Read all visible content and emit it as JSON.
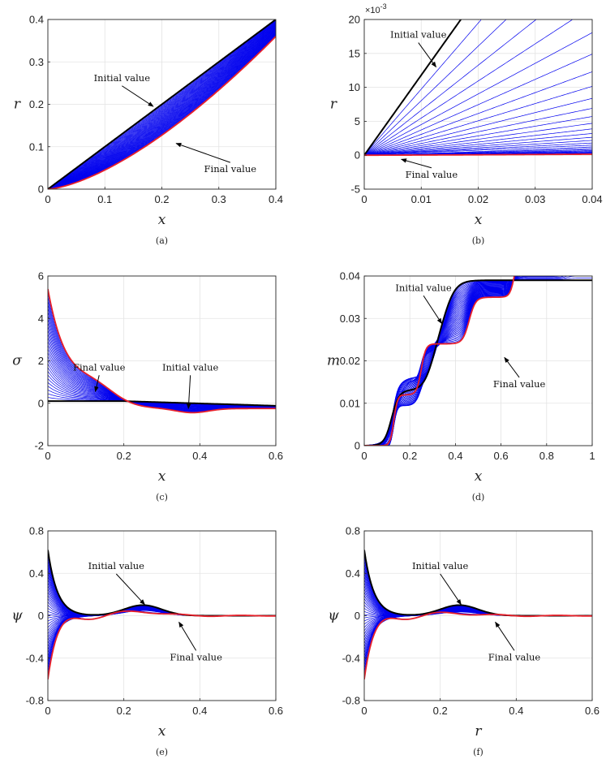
{
  "colors": {
    "family": "#0000ee",
    "initial": "#000000",
    "final": "#e8202a",
    "axis": "#262626",
    "grid": "#e3e3e3"
  },
  "chart_data": [
    {
      "id": "a",
      "type": "line",
      "caption": "(a)",
      "xlabel": "x",
      "ylabel": "r",
      "xlim": [
        0,
        0.4
      ],
      "ylim": [
        0,
        0.4
      ],
      "xticks": [
        0,
        0.1,
        0.2,
        0.3,
        0.4
      ],
      "xtick_labels": [
        "0",
        "0.1",
        "0.2",
        "0.3",
        "0.4"
      ],
      "yticks": [
        0,
        0.1,
        0.2,
        0.3,
        0.4
      ],
      "ytick_labels": [
        "0",
        "0.1",
        "0.2",
        "0.3",
        "0.4"
      ],
      "y_multiplier": "",
      "curve_model": "power",
      "init_params": [
        1.0,
        1.0
      ],
      "final_params": [
        1.45,
        1.5
      ],
      "family_count": 40,
      "annotations": [
        {
          "text": "Initial value",
          "label_xy": [
            0.13,
            0.255
          ],
          "tip_xy": [
            0.185,
            0.195
          ]
        },
        {
          "text": "Final value",
          "label_xy": [
            0.32,
            0.04
          ],
          "tip_xy": [
            0.225,
            0.108
          ]
        }
      ]
    },
    {
      "id": "b",
      "type": "line",
      "caption": "(b)",
      "xlabel": "x",
      "ylabel": "r",
      "xlim": [
        0,
        0.04
      ],
      "ylim": [
        -5,
        20
      ],
      "xticks": [
        0,
        0.01,
        0.02,
        0.03,
        0.04
      ],
      "xtick_labels": [
        "0",
        "0.01",
        "0.02",
        "0.03",
        "0.04"
      ],
      "yticks": [
        -5,
        0,
        5,
        10,
        15,
        20
      ],
      "ytick_labels": [
        "-5",
        "0",
        "5",
        "10",
        "15",
        "20"
      ],
      "y_multiplier": "×10-3",
      "curve_model": "fan",
      "init_params": [
        1000
      ],
      "final_params": [
        3.7
      ],
      "family_count": 30,
      "annotations": [
        {
          "text": "Initial value",
          "label_xy": [
            0.0095,
            17.3
          ],
          "tip_xy": [
            0.0126,
            13.0
          ]
        },
        {
          "text": "Final value",
          "label_xy": [
            0.0118,
            -3.3
          ],
          "tip_xy": [
            0.0065,
            -0.6
          ]
        }
      ]
    },
    {
      "id": "c",
      "type": "line",
      "caption": "(c)",
      "xlabel": "x",
      "ylabel": "σ",
      "xlim": [
        0,
        0.6
      ],
      "ylim": [
        -2,
        6
      ],
      "xticks": [
        0,
        0.2,
        0.4,
        0.6
      ],
      "xtick_labels": [
        "0",
        "0.2",
        "0.4",
        "0.6"
      ],
      "yticks": [
        -2,
        0,
        2,
        4,
        6
      ],
      "ytick_labels": [
        "-2",
        "0",
        "2",
        "4",
        "6"
      ],
      "y_multiplier": "",
      "curve_model": "decay",
      "init_params": [
        0.1,
        -0.25
      ],
      "final_params": [
        5.3,
        -0.25
      ],
      "family_count": 30,
      "annotations": [
        {
          "text": "Final value",
          "label_xy": [
            0.135,
            1.55
          ],
          "tip_xy": [
            0.125,
            0.55
          ]
        },
        {
          "text": "Initial value",
          "label_xy": [
            0.375,
            1.55
          ],
          "tip_xy": [
            0.37,
            -0.25
          ]
        }
      ]
    },
    {
      "id": "d",
      "type": "line",
      "caption": "(d)",
      "xlabel": "x",
      "ylabel": "m",
      "xlim": [
        0,
        1
      ],
      "ylim": [
        0,
        0.04
      ],
      "xticks": [
        0,
        0.2,
        0.4,
        0.6,
        0.8,
        1
      ],
      "xtick_labels": [
        "0",
        "0.2",
        "0.4",
        "0.6",
        "0.8",
        "1"
      ],
      "yticks": [
        0,
        0.01,
        0.02,
        0.03,
        0.04
      ],
      "ytick_labels": [
        "0",
        "0.01",
        "0.02",
        "0.03",
        "0.04"
      ],
      "y_multiplier": "",
      "curve_model": "steps",
      "init_steps": [
        [
          0.12,
          0.016,
          0.013
        ],
        [
          0.3,
          0.022,
          0.012
        ],
        [
          0.355,
          0.026,
          0.014
        ]
      ],
      "final_steps": [
        [
          0.13,
          0.008,
          0.012
        ],
        [
          0.25,
          0.01,
          0.012
        ],
        [
          0.46,
          0.014,
          0.011
        ],
        [
          0.66,
          0.01,
          0.011
        ],
        [
          0.89,
          0.011,
          0.013
        ]
      ],
      "family_count": 40,
      "annotations": [
        {
          "text": "Initial value",
          "label_xy": [
            0.26,
            0.0365
          ],
          "tip_xy": [
            0.34,
            0.0288
          ]
        },
        {
          "text": "Final value",
          "label_xy": [
            0.68,
            0.0138
          ],
          "tip_xy": [
            0.615,
            0.0208
          ]
        }
      ]
    },
    {
      "id": "e",
      "type": "line",
      "caption": "(e)",
      "xlabel": "x",
      "ylabel": "ψ",
      "xlim": [
        0,
        0.6
      ],
      "ylim": [
        -0.8,
        0.8
      ],
      "xticks": [
        0,
        0.2,
        0.4,
        0.6
      ],
      "xtick_labels": [
        "0",
        "0.2",
        "0.4",
        "0.6"
      ],
      "yticks": [
        -0.8,
        -0.4,
        0,
        0.4,
        0.8
      ],
      "ytick_labels": [
        "-0.8",
        "-0.4",
        "0",
        "0.4",
        "0.8"
      ],
      "y_multiplier": "",
      "curve_model": "wave",
      "init_params": [
        0.1,
        0.25,
        0.07
      ],
      "final_params": [
        -0.6,
        0.1
      ],
      "family_count": 40,
      "annotations": [
        {
          "text": "Initial value",
          "label_xy": [
            0.18,
            0.44
          ],
          "tip_xy": [
            0.255,
            0.105
          ]
        },
        {
          "text": "Final value",
          "label_xy": [
            0.39,
            -0.42
          ],
          "tip_xy": [
            0.345,
            -0.06
          ]
        }
      ]
    },
    {
      "id": "f",
      "type": "line",
      "caption": "(f)",
      "xlabel": "r",
      "ylabel": "ψ",
      "xlim": [
        0,
        0.6
      ],
      "ylim": [
        -0.8,
        0.8
      ],
      "xticks": [
        0,
        0.2,
        0.4,
        0.6
      ],
      "xtick_labels": [
        "0",
        "0.2",
        "0.4",
        "0.6"
      ],
      "yticks": [
        -0.8,
        -0.4,
        0,
        0.4,
        0.8
      ],
      "ytick_labels": [
        "-0.8",
        "-0.4",
        "0",
        "0.4",
        "0.8"
      ],
      "y_multiplier": "",
      "curve_model": "wave",
      "init_params": [
        0.1,
        0.25,
        0.07
      ],
      "final_params": [
        -0.6,
        0.06
      ],
      "family_count": 40,
      "annotations": [
        {
          "text": "Initial value",
          "label_xy": [
            0.2,
            0.44
          ],
          "tip_xy": [
            0.255,
            0.105
          ]
        },
        {
          "text": "Final value",
          "label_xy": [
            0.395,
            -0.42
          ],
          "tip_xy": [
            0.345,
            -0.06
          ]
        }
      ]
    }
  ]
}
